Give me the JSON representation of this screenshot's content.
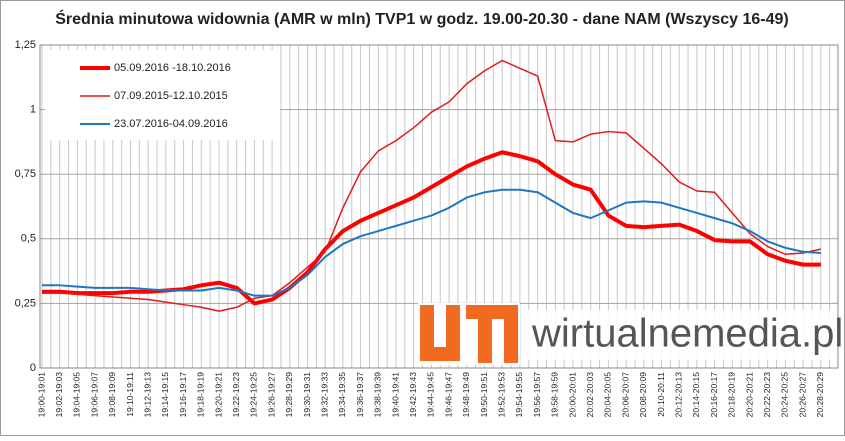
{
  "chart_data": {
    "type": "line",
    "title": "Średnia minutowa widownia (AMR w mln) TVP1 w godz. 19.00-20.30 - dane NAM (Wszyscy 16-49)",
    "watermark": "wirtualnemedia.pl",
    "categories": [
      "19:00-19:01",
      "19:02-19:03",
      "19:04-19:05",
      "19:06-19:07",
      "19:08-19:09",
      "19:10-19:11",
      "19:12-19:13",
      "19:14-19:15",
      "19:16-19:17",
      "19:18-19:19",
      "19:20-19:21",
      "19:22-19:23",
      "19:24-19:25",
      "19:26-19:27",
      "19:28-19:29",
      "19:30-19:31",
      "19:32-19:33",
      "19:34-19:35",
      "19:36-19:37",
      "19:38-19:39",
      "19:40-19:41",
      "19:42-19:43",
      "19:44-19:45",
      "19:46-19:47",
      "19:48-19:49",
      "19:50-19:51",
      "19:52-19:53",
      "19:54-19:55",
      "19:56-19:57",
      "19:58-19:59",
      "20:00-20:01",
      "20:02-20:03",
      "20:04-20:05",
      "20:06-20:07",
      "20:08-20:09",
      "20:10-20:11",
      "20:12-20:13",
      "20:14-20:15",
      "20:16-20:17",
      "20:18-20:19",
      "20:20-20:21",
      "20:22-20:23",
      "20:24-20:25",
      "20:26-20:27",
      "20:28-20:29"
    ],
    "series": [
      {
        "name": "05.09.2016 -18.10.2016",
        "color": "#ff0000",
        "width": 4,
        "values": [
          0.295,
          0.295,
          0.29,
          0.29,
          0.29,
          0.295,
          0.295,
          0.3,
          0.305,
          0.32,
          0.33,
          0.31,
          0.25,
          0.265,
          0.31,
          0.37,
          0.46,
          0.53,
          0.57,
          0.6,
          0.63,
          0.66,
          0.7,
          0.74,
          0.78,
          0.81,
          0.835,
          0.82,
          0.8,
          0.75,
          0.71,
          0.69,
          0.59,
          0.55,
          0.545,
          0.55,
          0.555,
          0.53,
          0.495,
          0.49,
          0.49,
          0.44,
          0.415,
          0.4,
          0.4
        ]
      },
      {
        "name": "07.09.2015-12.10.2015",
        "color": "#e31a1c",
        "width": 1.5,
        "values": [
          0.29,
          0.29,
          0.285,
          0.28,
          0.275,
          0.27,
          0.265,
          0.255,
          0.245,
          0.235,
          0.22,
          0.235,
          0.27,
          0.28,
          0.33,
          0.39,
          0.45,
          0.62,
          0.76,
          0.84,
          0.88,
          0.93,
          0.99,
          1.03,
          1.1,
          1.15,
          1.19,
          1.16,
          1.13,
          0.88,
          0.875,
          0.905,
          0.915,
          0.91,
          0.85,
          0.79,
          0.72,
          0.685,
          0.68,
          0.6,
          0.52,
          0.47,
          0.44,
          0.445,
          0.46
        ]
      },
      {
        "name": "23.07.2016-04.09.2016",
        "color": "#1f77c4",
        "width": 2,
        "values": [
          0.32,
          0.32,
          0.315,
          0.31,
          0.31,
          0.31,
          0.305,
          0.3,
          0.3,
          0.3,
          0.31,
          0.3,
          0.28,
          0.28,
          0.31,
          0.36,
          0.43,
          0.48,
          0.51,
          0.53,
          0.55,
          0.57,
          0.59,
          0.62,
          0.66,
          0.68,
          0.69,
          0.69,
          0.68,
          0.64,
          0.6,
          0.58,
          0.61,
          0.64,
          0.645,
          0.64,
          0.62,
          0.6,
          0.58,
          0.56,
          0.53,
          0.49,
          0.465,
          0.45,
          0.445
        ]
      }
    ],
    "ylim": [
      0,
      1.25
    ],
    "yticks": [
      0,
      {
        "value": 0.25,
        "label": "0,25"
      },
      {
        "value": 0.5,
        "label": "0,5"
      },
      {
        "value": 0.75,
        "label": "0,75"
      },
      1,
      {
        "value": 1.25,
        "label": "1,25"
      }
    ],
    "grid": true
  }
}
